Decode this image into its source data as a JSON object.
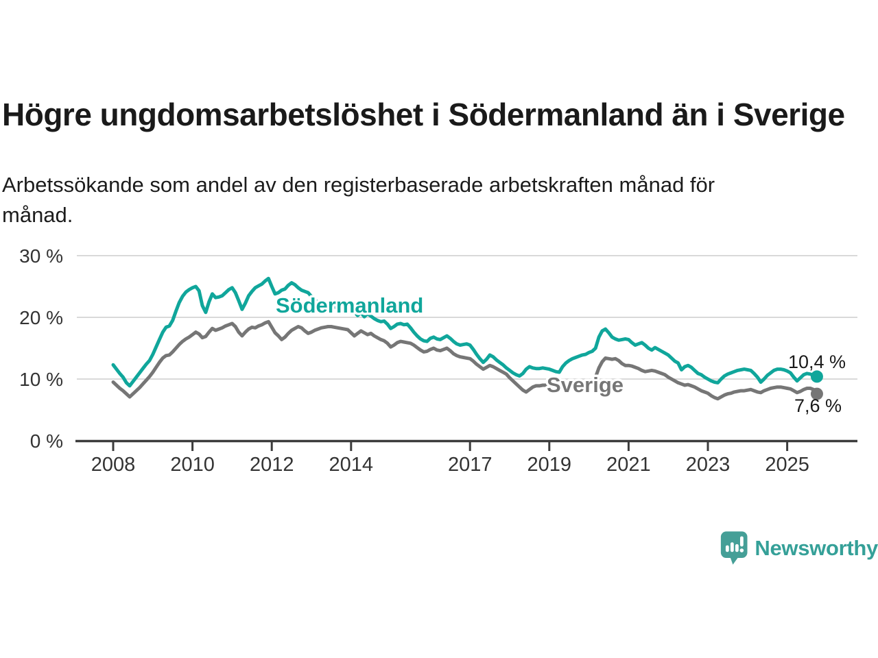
{
  "header": {
    "title": "Högre ungdomsarbetslöshet i Södermanland än i Sverige",
    "subtitle": "Arbetssökande som andel av den registerbaserade arbetskraften månad för\nmånad."
  },
  "chart_data": {
    "type": "line",
    "x_unit": "month",
    "x_start": "2008-01",
    "x_end": "2025-10",
    "ylim": [
      0,
      30
    ],
    "grid": "horizontal",
    "legend_position": "inline",
    "y_ticks": [
      {
        "value": 0,
        "label": "0 %"
      },
      {
        "value": 10,
        "label": "10 %"
      },
      {
        "value": 20,
        "label": "20 %"
      },
      {
        "value": 30,
        "label": "30 %"
      }
    ],
    "x_ticks": [
      {
        "value": 2008,
        "label": "2008"
      },
      {
        "value": 2010,
        "label": "2010"
      },
      {
        "value": 2012,
        "label": "2012"
      },
      {
        "value": 2014,
        "label": "2014"
      },
      {
        "value": 2017,
        "label": "2017"
      },
      {
        "value": 2019,
        "label": "2019"
      },
      {
        "value": 2021,
        "label": "2021"
      },
      {
        "value": 2023,
        "label": "2023"
      },
      {
        "value": 2025,
        "label": "2025"
      }
    ],
    "series": [
      {
        "name": "Södermanland",
        "inline_label": "Södermanland",
        "end_label": "10,4 %",
        "last_value": 10.4,
        "color": "#10a69b",
        "values": [
          12.3,
          11.6,
          10.9,
          10.3,
          9.4,
          8.9,
          9.6,
          10.3,
          11.0,
          11.7,
          12.4,
          13.0,
          14.0,
          15.2,
          16.4,
          17.6,
          18.4,
          18.6,
          19.5,
          21.0,
          22.4,
          23.4,
          24.1,
          24.5,
          24.8,
          25.0,
          24.3,
          21.9,
          20.8,
          22.5,
          23.8,
          23.2,
          23.3,
          23.5,
          24.0,
          24.5,
          24.8,
          24.0,
          22.7,
          21.3,
          22.3,
          23.5,
          24.2,
          24.8,
          25.1,
          25.4,
          25.9,
          26.3,
          25.0,
          23.8,
          24.0,
          24.4,
          24.6,
          25.2,
          25.6,
          25.3,
          24.8,
          24.4,
          24.2,
          24.0,
          23.4,
          22.8,
          22.4,
          22.0,
          21.7,
          21.9,
          22.2,
          21.8,
          21.3,
          20.9,
          20.7,
          21.0,
          21.2,
          20.9,
          20.3,
          20.8,
          20.1,
          20.6,
          20.2,
          19.8,
          19.5,
          19.3,
          19.4,
          18.9,
          18.2,
          18.5,
          18.9,
          19.0,
          18.8,
          18.9,
          18.3,
          17.6,
          17.0,
          16.5,
          16.2,
          16.1,
          16.6,
          16.8,
          16.5,
          16.4,
          16.7,
          17.0,
          16.6,
          16.1,
          15.7,
          15.5,
          15.6,
          15.7,
          15.5,
          14.8,
          14.0,
          13.3,
          12.7,
          13.2,
          13.9,
          13.6,
          13.1,
          12.7,
          12.3,
          11.8,
          11.4,
          11.0,
          10.7,
          10.5,
          10.9,
          11.6,
          12.0,
          11.8,
          11.7,
          11.7,
          11.8,
          11.7,
          11.6,
          11.4,
          11.2,
          11.1,
          12.0,
          12.6,
          13.0,
          13.3,
          13.5,
          13.7,
          13.9,
          14.0,
          14.3,
          14.5,
          15.0,
          16.8,
          17.8,
          18.1,
          17.5,
          16.8,
          16.5,
          16.3,
          16.4,
          16.5,
          16.4,
          15.9,
          15.5,
          15.7,
          15.9,
          15.5,
          15.0,
          14.7,
          15.1,
          14.8,
          14.5,
          14.2,
          13.9,
          13.4,
          12.9,
          12.6,
          11.5,
          12.0,
          12.2,
          11.9,
          11.4,
          10.9,
          10.7,
          10.3,
          10.0,
          9.7,
          9.5,
          9.4,
          10.0,
          10.5,
          10.8,
          11.0,
          11.2,
          11.4,
          11.5,
          11.6,
          11.5,
          11.4,
          10.9,
          10.3,
          9.5,
          10.0,
          10.6,
          11.0,
          11.4,
          11.6,
          11.6,
          11.5,
          11.3,
          11.0,
          10.3,
          9.7,
          10.2,
          10.7,
          10.9,
          10.8,
          10.6,
          10.4
        ]
      },
      {
        "name": "Sverige",
        "inline_label": "Sverige",
        "end_label": "7,6 %",
        "last_value": 7.6,
        "color": "#767676",
        "values": [
          9.5,
          9.0,
          8.5,
          8.1,
          7.6,
          7.1,
          7.6,
          8.1,
          8.6,
          9.2,
          9.8,
          10.4,
          11.1,
          11.9,
          12.7,
          13.4,
          13.8,
          13.9,
          14.4,
          15.0,
          15.6,
          16.1,
          16.5,
          16.8,
          17.2,
          17.6,
          17.3,
          16.7,
          16.9,
          17.6,
          18.2,
          17.9,
          18.1,
          18.3,
          18.6,
          18.8,
          19.0,
          18.5,
          17.6,
          17.0,
          17.6,
          18.1,
          18.4,
          18.3,
          18.6,
          18.8,
          19.1,
          19.3,
          18.4,
          17.5,
          17.0,
          16.4,
          16.8,
          17.4,
          17.9,
          18.2,
          18.5,
          18.3,
          17.8,
          17.4,
          17.6,
          17.9,
          18.1,
          18.3,
          18.4,
          18.5,
          18.5,
          18.4,
          18.3,
          18.2,
          18.1,
          18.0,
          17.5,
          17.0,
          17.4,
          17.8,
          17.5,
          17.2,
          17.4,
          17.0,
          16.7,
          16.4,
          16.2,
          15.8,
          15.2,
          15.5,
          15.9,
          16.1,
          16.0,
          15.9,
          15.8,
          15.5,
          15.1,
          14.7,
          14.4,
          14.5,
          14.8,
          15.0,
          14.7,
          14.6,
          14.8,
          15.0,
          14.6,
          14.1,
          13.8,
          13.6,
          13.5,
          13.4,
          13.3,
          12.9,
          12.4,
          12.0,
          11.6,
          11.9,
          12.2,
          12.0,
          11.7,
          11.4,
          11.1,
          10.8,
          10.2,
          9.7,
          9.2,
          8.7,
          8.2,
          7.9,
          8.3,
          8.7,
          8.9,
          8.9,
          9.0,
          9.0,
          8.9,
          8.8,
          8.7,
          8.6,
          8.8,
          9.0,
          9.2,
          9.1,
          9.0,
          9.1,
          9.2,
          9.3,
          9.5,
          9.7,
          10.3,
          11.8,
          12.8,
          13.4,
          13.3,
          13.2,
          13.3,
          13.0,
          12.5,
          12.2,
          12.2,
          12.1,
          11.9,
          11.7,
          11.4,
          11.2,
          11.3,
          11.4,
          11.3,
          11.1,
          10.9,
          10.7,
          10.3,
          10.0,
          9.7,
          9.4,
          9.2,
          9.0,
          9.1,
          8.9,
          8.7,
          8.4,
          8.1,
          7.9,
          7.7,
          7.3,
          7.0,
          6.8,
          7.1,
          7.4,
          7.6,
          7.7,
          7.9,
          8.0,
          8.1,
          8.1,
          8.2,
          8.3,
          8.1,
          7.9,
          7.8,
          8.1,
          8.3,
          8.5,
          8.6,
          8.7,
          8.7,
          8.6,
          8.5,
          8.4,
          8.1,
          7.8,
          8.0,
          8.3,
          8.5,
          8.5,
          8.3,
          7.6
        ]
      }
    ],
    "colors": {
      "grid": "#d9d9d9",
      "axis": "#3c3c3c",
      "tick_text": "#333333",
      "value_text": "#1a1a1a"
    }
  },
  "footer": {
    "brand": "Newsworthy",
    "brand_color": "#35a098",
    "logo_icon": "chart-bars-speech-bubble-icon"
  }
}
